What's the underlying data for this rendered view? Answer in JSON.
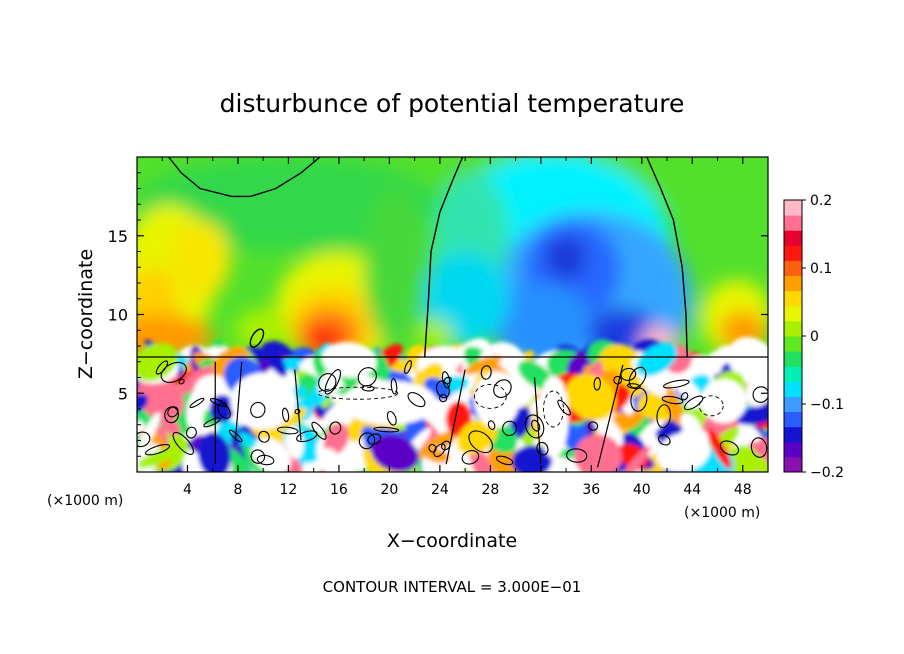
{
  "chart_data": {
    "type": "heatmap",
    "title": "disturbunce of potential temperature",
    "xlabel": "X−coordinate",
    "ylabel": "Z−coordinate",
    "x_unit": "(×1000 m)",
    "x_unit_right": "(×1000 m)",
    "footer": "CONTOUR INTERVAL = 3.000E−01",
    "xlim": [
      0,
      50
    ],
    "ylim": [
      0,
      20
    ],
    "x_ticks": [
      4,
      8,
      12,
      16,
      20,
      24,
      28,
      32,
      36,
      40,
      44,
      48
    ],
    "x_tick_labels": [
      "4",
      "8",
      "12",
      "16",
      "20",
      "24",
      "28",
      "32",
      "36",
      "40",
      "44",
      "48"
    ],
    "y_ticks": [
      5,
      10,
      15
    ],
    "y_tick_labels": [
      "5",
      "10",
      "15"
    ],
    "colorbar": {
      "range": [
        -0.2,
        0.2
      ],
      "tick_values": [
        0.2,
        0.1,
        0,
        -0.1,
        -0.2
      ],
      "tick_labels": [
        "0.2",
        "0.1",
        "0",
        "−0.1",
        "−0.2"
      ],
      "colors": [
        "#8a10b0",
        "#5c00c8",
        "#1414d0",
        "#2a5cff",
        "#3c9cff",
        "#00e0ff",
        "#00f0b8",
        "#20e060",
        "#60e820",
        "#a8f000",
        "#e8f400",
        "#ffd800",
        "#ffa000",
        "#ff6010",
        "#ff1810",
        "#e80030",
        "#ff7090",
        "#ffb8c8"
      ]
    }
  }
}
